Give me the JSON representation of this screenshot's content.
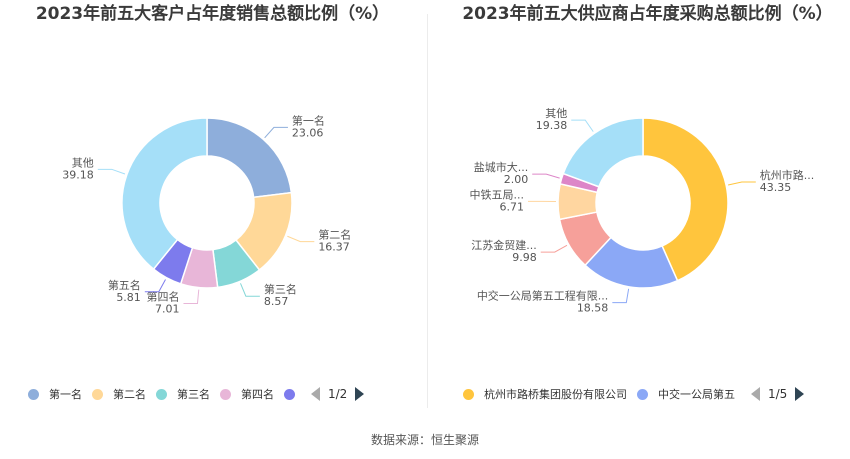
{
  "chart_data": [
    {
      "type": "pie",
      "title": "2023年前五大客户占年度销售总额比例（%）",
      "categories": [
        "第一名",
        "第二名",
        "第三名",
        "第四名",
        "第五名",
        "其他"
      ],
      "values": [
        23.06,
        16.37,
        8.57,
        7.01,
        5.81,
        39.18
      ],
      "colors": [
        "#8eaedb",
        "#ffd898",
        "#84d7d7",
        "#e8b6d8",
        "#7d7bed",
        "#a5dff8"
      ],
      "slice_labels": [
        "第一名",
        "第二名",
        "第三名",
        "第四名",
        "第五名",
        "其他"
      ],
      "legend": {
        "position": "bottom",
        "items": [
          "第一名",
          "第二名",
          "第三名",
          "第四名",
          ""
        ],
        "page": "1/2"
      }
    },
    {
      "type": "pie",
      "title": "2023年前五大供应商占年度采购总额比例（%）",
      "categories": [
        "杭州市路桥集团股份有限公司",
        "中交一公局第五工程有限公司",
        "江苏金贸建设集团",
        "中铁五局",
        "盐城市大",
        "其他"
      ],
      "values": [
        43.35,
        18.58,
        9.98,
        6.71,
        2.0,
        19.38
      ],
      "colors": [
        "#ffc53d",
        "#8ba8f6",
        "#f6a09a",
        "#ffd6a0",
        "#dd86c8",
        "#a5dff8"
      ],
      "slice_labels": [
        "杭州市路...",
        "中交一公局第五工程有限...",
        "江苏金贸建...",
        "中铁五局...",
        "盐城市大...",
        "其他"
      ],
      "legend": {
        "position": "bottom",
        "items": [
          "杭州市路桥集团股份有限公司",
          "中交一公局第五"
        ],
        "page": "1/5"
      }
    }
  ],
  "source": "数据来源：恒生聚源"
}
